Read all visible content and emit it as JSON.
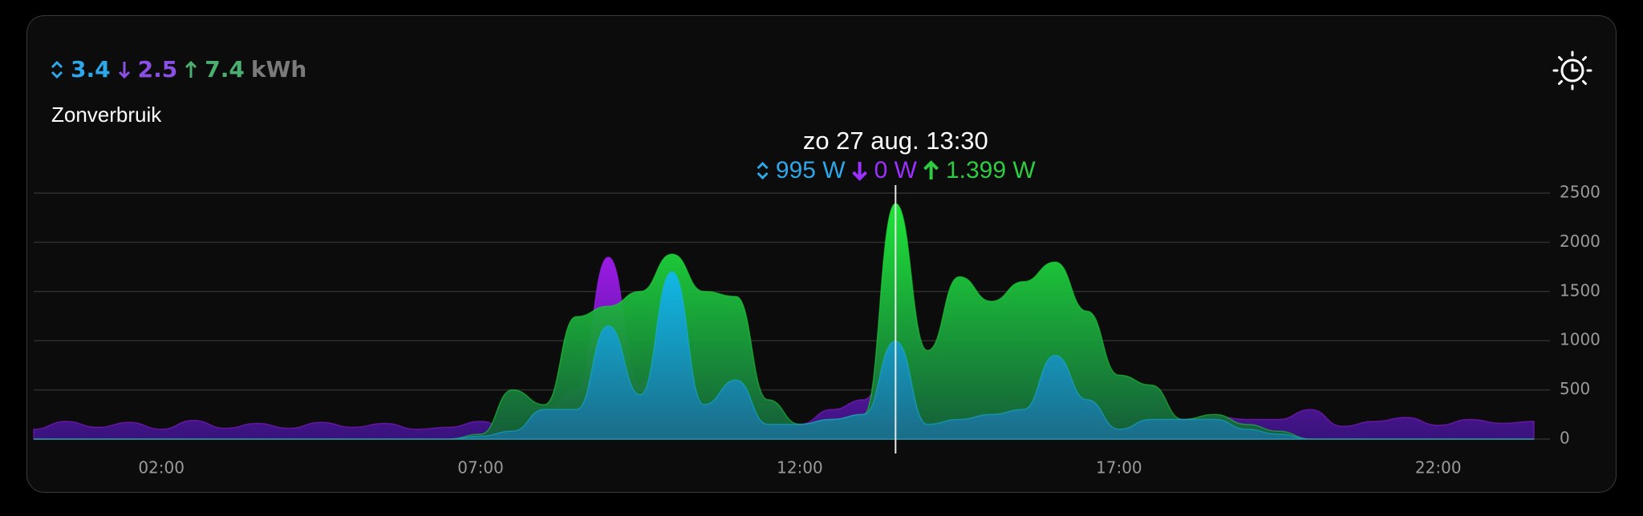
{
  "card": {
    "summary": [
      {
        "value": 3.4,
        "color": "#2ea6e8"
      },
      {
        "value": 2.5,
        "color": "#8b4fe6"
      },
      {
        "value": 7.4,
        "color": "#4caf72"
      }
    ],
    "unit": "kWh",
    "title": "Zonverbruik"
  },
  "chart_data": {
    "type": "stacked-area",
    "x": [
      0,
      0.5,
      1,
      1.5,
      2,
      2.5,
      3,
      3.5,
      4,
      4.5,
      5,
      5.5,
      6,
      6.5,
      7,
      7.5,
      8,
      8.5,
      9,
      9.5,
      10,
      10.5,
      11,
      11.5,
      12,
      12.5,
      13,
      13.5,
      14,
      14.5,
      15,
      15.5,
      16,
      16.5,
      17,
      17.5,
      18,
      18.5,
      19,
      19.5,
      20,
      20.5,
      21,
      21.5,
      22,
      22.5,
      23,
      23.5
    ],
    "series": [
      {
        "color": "#13b3e6",
        "values": [
          0,
          0,
          0,
          0,
          0,
          0,
          0,
          0,
          0,
          0,
          0,
          0,
          0,
          0,
          30,
          80,
          300,
          300,
          1150,
          450,
          1700,
          350,
          600,
          150,
          150,
          200,
          250,
          995,
          150,
          200,
          250,
          300,
          850,
          400,
          100,
          200,
          200,
          200,
          100,
          50,
          0,
          0,
          0,
          0,
          0,
          0,
          0,
          0
        ]
      },
      {
        "color": "#9b1ee8",
        "values": [
          100,
          180,
          120,
          170,
          100,
          190,
          110,
          160,
          110,
          170,
          120,
          160,
          100,
          120,
          150,
          0,
          0,
          200,
          700,
          100,
          0,
          0,
          0,
          0,
          0,
          100,
          150,
          0,
          0,
          0,
          0,
          0,
          0,
          0,
          0,
          0,
          0,
          30,
          100,
          150,
          300,
          130,
          180,
          220,
          140,
          200,
          160,
          180
        ]
      },
      {
        "color": "#1fe03a",
        "values": [
          0,
          0,
          0,
          0,
          0,
          0,
          0,
          0,
          0,
          0,
          0,
          0,
          0,
          0,
          20,
          420,
          50,
          945,
          200,
          1050,
          180,
          1150,
          850,
          250,
          0,
          0,
          0,
          1399,
          750,
          1450,
          1150,
          1300,
          950,
          900,
          550,
          350,
          0,
          50,
          50,
          30,
          0,
          0,
          0,
          0,
          0,
          0,
          0,
          0
        ]
      }
    ],
    "xlim": [
      0,
      23.75
    ],
    "xticks": [
      {
        "value": 2,
        "label": "02:00"
      },
      {
        "value": 7,
        "label": "07:00"
      },
      {
        "value": 12,
        "label": "12:00"
      },
      {
        "value": 17,
        "label": "17:00"
      },
      {
        "value": 22,
        "label": "22:00"
      }
    ],
    "ylim": [
      0,
      2500
    ],
    "yticks": [
      0,
      500,
      1000,
      1500,
      2000,
      2500
    ],
    "grid": true,
    "cursor_x": 13.5,
    "tooltip": {
      "title": "zo 27 aug. 13:30",
      "items": [
        {
          "label": "995 W",
          "color": "#2ea6e8"
        },
        {
          "label": "0 W",
          "color": "#9b30ff"
        },
        {
          "label": "1.399 W",
          "color": "#2ecc40"
        }
      ]
    }
  }
}
